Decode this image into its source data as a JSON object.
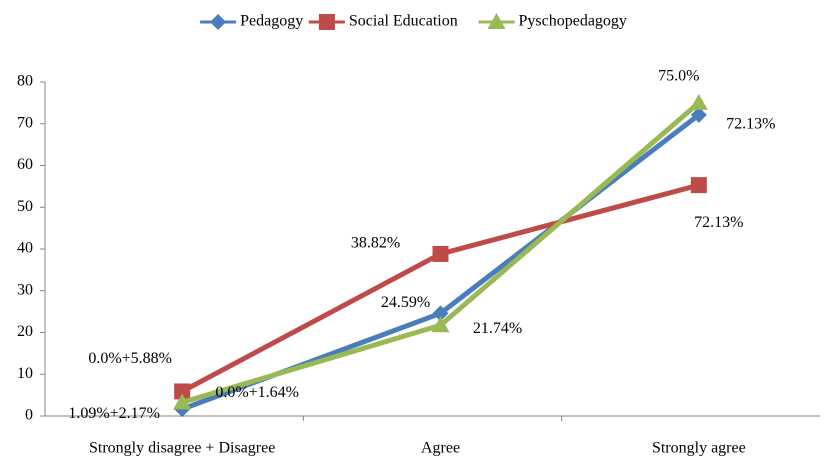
{
  "chart_data": {
    "type": "line",
    "categories": [
      "Strongly disagree + Disagree",
      "Agree",
      "Strongly agree"
    ],
    "series": [
      {
        "name": "Pedagogy",
        "color": "#4a7ebb",
        "marker": "diamond",
        "values": [
          1.64,
          24.59,
          72.13
        ],
        "value_labels": [
          "0.0%+1.64%",
          "24.59%",
          "72.13%"
        ]
      },
      {
        "name": "Social Education",
        "color": "#be4b48",
        "marker": "square",
        "values": [
          5.88,
          38.82,
          55.3
        ],
        "value_labels": [
          "0.0%+5.88%",
          "38.82%",
          null
        ]
      },
      {
        "name": "Pyschopedagogy",
        "color": "#98b954",
        "marker": "triangle",
        "values": [
          3.26,
          21.74,
          75.0
        ],
        "value_labels": [
          "1.09%+2.17%",
          "21.74%",
          "75.0%"
        ]
      }
    ],
    "annotations": [
      "72.13%"
    ],
    "ylim": [
      0,
      80
    ],
    "yticks": [
      0,
      10,
      20,
      30,
      40,
      50,
      60,
      70,
      80
    ],
    "legend": "top",
    "grid": false
  }
}
